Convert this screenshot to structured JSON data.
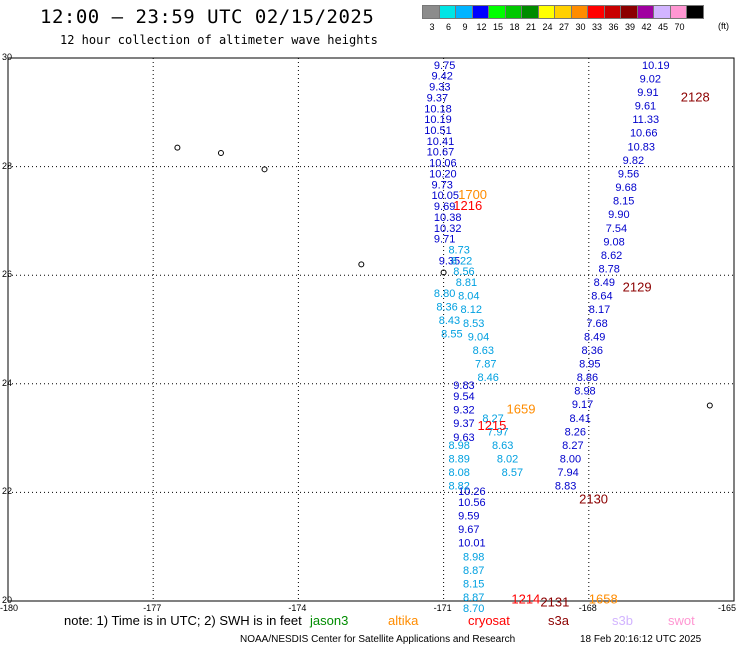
{
  "header": {
    "title": "12:00 – 23:59 UTC 02/15/2025",
    "subtitle": "12 hour collection of altimeter wave heights"
  },
  "colorbar": {
    "unit": "(ft)",
    "cells": [
      {
        "label": "3",
        "color": "#8c8c8c"
      },
      {
        "label": "6",
        "color": "#00e5e5"
      },
      {
        "label": "9",
        "color": "#00b4ff"
      },
      {
        "label": "12",
        "color": "#0000ff"
      },
      {
        "label": "15",
        "color": "#00ff00"
      },
      {
        "label": "18",
        "color": "#00c800"
      },
      {
        "label": "21",
        "color": "#008c00"
      },
      {
        "label": "24",
        "color": "#ffff00"
      },
      {
        "label": "27",
        "color": "#ffd000"
      },
      {
        "label": "30",
        "color": "#ff8c00"
      },
      {
        "label": "33",
        "color": "#ff0000"
      },
      {
        "label": "36",
        "color": "#c80000"
      },
      {
        "label": "39",
        "color": "#8c0000"
      },
      {
        "label": "42",
        "color": "#a000a0"
      },
      {
        "label": "45",
        "color": "#d2b4ff"
      },
      {
        "label": "70",
        "color": "#ff96d2"
      },
      {
        "label": "",
        "color": "#000000"
      }
    ]
  },
  "axes": {
    "lon_labels": [
      "-180",
      "-177",
      "-174",
      "-171",
      "-168",
      "-165"
    ],
    "lat_labels": [
      "30",
      "28",
      "26",
      "24",
      "22",
      "20"
    ]
  },
  "chart_data": {
    "type": "scatter",
    "title": "12:00 – 23:59 UTC 02/15/2025",
    "subtitle": "12 hour collection of altimeter wave heights",
    "xlim": [
      -180,
      -165
    ],
    "ylim": [
      20,
      30
    ],
    "grid": true,
    "units": "ft",
    "tracks": [
      {
        "pass": "left track",
        "color": "#0000cc",
        "points": [
          {
            "lon": -171.2,
            "lat": 29.8,
            "v": "9.75"
          },
          {
            "lon": -171.25,
            "lat": 29.6,
            "v": "9.42"
          },
          {
            "lon": -171.3,
            "lat": 29.4,
            "v": "9.33"
          },
          {
            "lon": -171.35,
            "lat": 29.2,
            "v": "9.37"
          },
          {
            "lon": -171.4,
            "lat": 29.0,
            "v": "10.18"
          },
          {
            "lon": -171.4,
            "lat": 28.8,
            "v": "10.19"
          },
          {
            "lon": -171.4,
            "lat": 28.6,
            "v": "10.51"
          },
          {
            "lon": -171.35,
            "lat": 28.4,
            "v": "10.41"
          },
          {
            "lon": -171.35,
            "lat": 28.2,
            "v": "10.67"
          },
          {
            "lon": -171.3,
            "lat": 28.0,
            "v": "10.06"
          },
          {
            "lon": -171.3,
            "lat": 27.8,
            "v": "10.20"
          },
          {
            "lon": -171.25,
            "lat": 27.6,
            "v": "9.73"
          },
          {
            "lon": -171.25,
            "lat": 27.4,
            "v": "10.05"
          },
          {
            "lon": -171.2,
            "lat": 27.2,
            "v": "9.69"
          },
          {
            "lon": -171.2,
            "lat": 27.0,
            "v": "10.38"
          },
          {
            "lon": -171.2,
            "lat": 26.8,
            "v": "10.32"
          },
          {
            "lon": -171.2,
            "lat": 26.6,
            "v": "9.71"
          },
          {
            "lon": -171.1,
            "lat": 26.2,
            "v": "9.35"
          },
          {
            "lon": -170.8,
            "lat": 23.9,
            "v": "9.83"
          },
          {
            "lon": -170.8,
            "lat": 23.7,
            "v": "9.54"
          },
          {
            "lon": -170.8,
            "lat": 23.45,
            "v": "9.32"
          },
          {
            "lon": -170.8,
            "lat": 23.2,
            "v": "9.37"
          },
          {
            "lon": -170.8,
            "lat": 22.95,
            "v": "9.63"
          },
          {
            "lon": -170.7,
            "lat": 21.95,
            "v": "10.26"
          },
          {
            "lon": -170.7,
            "lat": 21.75,
            "v": "10.56"
          },
          {
            "lon": -170.7,
            "lat": 21.5,
            "v": "9.59"
          },
          {
            "lon": -170.7,
            "lat": 21.25,
            "v": "9.67"
          },
          {
            "lon": -170.7,
            "lat": 21.0,
            "v": "10.01"
          }
        ]
      },
      {
        "pass": "right track",
        "color": "#0000cc",
        "points": [
          {
            "lon": -166.9,
            "lat": 29.8,
            "v": "10.19"
          },
          {
            "lon": -166.95,
            "lat": 29.55,
            "v": "9.02"
          },
          {
            "lon": -167.0,
            "lat": 29.3,
            "v": "9.91"
          },
          {
            "lon": -167.05,
            "lat": 29.05,
            "v": "9.61"
          },
          {
            "lon": -167.1,
            "lat": 28.8,
            "v": "11.33"
          },
          {
            "lon": -167.15,
            "lat": 28.55,
            "v": "10.66"
          },
          {
            "lon": -167.2,
            "lat": 28.3,
            "v": "10.83"
          },
          {
            "lon": -167.3,
            "lat": 28.05,
            "v": "9.82"
          },
          {
            "lon": -167.4,
            "lat": 27.8,
            "v": "9.56"
          },
          {
            "lon": -167.45,
            "lat": 27.55,
            "v": "9.68"
          },
          {
            "lon": -167.5,
            "lat": 27.3,
            "v": "8.15"
          },
          {
            "lon": -167.6,
            "lat": 27.05,
            "v": "9.90"
          },
          {
            "lon": -167.65,
            "lat": 26.8,
            "v": "7.54"
          },
          {
            "lon": -167.7,
            "lat": 26.55,
            "v": "9.08"
          },
          {
            "lon": -167.75,
            "lat": 26.3,
            "v": "8.62"
          },
          {
            "lon": -167.8,
            "lat": 26.05,
            "v": "8.78"
          },
          {
            "lon": -167.9,
            "lat": 25.8,
            "v": "8.49"
          },
          {
            "lon": -167.95,
            "lat": 25.55,
            "v": "8.64"
          },
          {
            "lon": -168.0,
            "lat": 25.3,
            "v": "8.17"
          },
          {
            "lon": -168.05,
            "lat": 25.05,
            "v": "7.68"
          },
          {
            "lon": -168.1,
            "lat": 24.8,
            "v": "8.49"
          },
          {
            "lon": -168.15,
            "lat": 24.55,
            "v": "8.36"
          },
          {
            "lon": -168.2,
            "lat": 24.3,
            "v": "8.95"
          },
          {
            "lon": -168.25,
            "lat": 24.05,
            "v": "8.86"
          },
          {
            "lon": -168.3,
            "lat": 23.8,
            "v": "8.98"
          },
          {
            "lon": -168.35,
            "lat": 23.55,
            "v": "9.17"
          },
          {
            "lon": -168.4,
            "lat": 23.3,
            "v": "8.41"
          },
          {
            "lon": -168.5,
            "lat": 23.05,
            "v": "8.26"
          },
          {
            "lon": -168.55,
            "lat": 22.8,
            "v": "8.27"
          },
          {
            "lon": -168.6,
            "lat": 22.55,
            "v": "8.00"
          },
          {
            "lon": -168.65,
            "lat": 22.3,
            "v": "7.94"
          },
          {
            "lon": -168.7,
            "lat": 22.05,
            "v": "8.83"
          }
        ]
      },
      {
        "pass": "middle track",
        "color": "#00a0e0",
        "points": [
          {
            "lon": -170.9,
            "lat": 26.4,
            "v": "8.73"
          },
          {
            "lon": -170.85,
            "lat": 26.2,
            "v": "8.22"
          },
          {
            "lon": -170.8,
            "lat": 26.0,
            "v": "8.56"
          },
          {
            "lon": -170.75,
            "lat": 25.8,
            "v": "8.81"
          },
          {
            "lon": -170.7,
            "lat": 25.55,
            "v": "8.04"
          },
          {
            "lon": -170.65,
            "lat": 25.3,
            "v": "8.12"
          },
          {
            "lon": -170.6,
            "lat": 25.05,
            "v": "8.53"
          },
          {
            "lon": -170.5,
            "lat": 24.8,
            "v": "9.04"
          },
          {
            "lon": -170.4,
            "lat": 24.55,
            "v": "8.63"
          },
          {
            "lon": -170.35,
            "lat": 24.3,
            "v": "7.87"
          },
          {
            "lon": -170.3,
            "lat": 24.05,
            "v": "8.46"
          },
          {
            "lon": -170.2,
            "lat": 23.3,
            "v": "8.27"
          },
          {
            "lon": -170.1,
            "lat": 23.05,
            "v": "7.97"
          },
          {
            "lon": -170.0,
            "lat": 22.8,
            "v": "8.63"
          },
          {
            "lon": -169.9,
            "lat": 22.55,
            "v": "8.02"
          },
          {
            "lon": -169.8,
            "lat": 22.3,
            "v": "8.57"
          }
        ]
      },
      {
        "pass": "left lower track",
        "color": "#00a0e0",
        "points": [
          {
            "lon": -171.2,
            "lat": 25.6,
            "v": "8.80"
          },
          {
            "lon": -171.15,
            "lat": 25.35,
            "v": "8.36"
          },
          {
            "lon": -171.1,
            "lat": 25.1,
            "v": "8.43"
          },
          {
            "lon": -171.05,
            "lat": 24.85,
            "v": "8.55"
          },
          {
            "lon": -170.9,
            "lat": 22.8,
            "v": "8.98"
          },
          {
            "lon": -170.9,
            "lat": 22.55,
            "v": "8.89"
          },
          {
            "lon": -170.9,
            "lat": 22.3,
            "v": "8.08"
          },
          {
            "lon": -170.9,
            "lat": 22.05,
            "v": "8.82"
          },
          {
            "lon": -170.6,
            "lat": 20.75,
            "v": "8.98"
          },
          {
            "lon": -170.6,
            "lat": 20.5,
            "v": "8.87"
          },
          {
            "lon": -170.6,
            "lat": 20.25,
            "v": "8.15"
          },
          {
            "lon": -170.6,
            "lat": 20.0,
            "v": "8.87"
          },
          {
            "lon": -170.6,
            "lat": 19.8,
            "v": "8.70"
          }
        ]
      }
    ],
    "time_labels": [
      {
        "text": "2128",
        "color": "#8c0000",
        "lon": -166.1,
        "lat": 29.2
      },
      {
        "text": "1700",
        "color": "#ff8c00",
        "lon": -170.7,
        "lat": 27.4
      },
      {
        "text": "1216",
        "color": "#ff0000",
        "lon": -170.8,
        "lat": 27.2
      },
      {
        "text": "2129",
        "color": "#8c0000",
        "lon": -167.3,
        "lat": 25.7
      },
      {
        "text": "1659",
        "color": "#ff8c00",
        "lon": -169.7,
        "lat": 23.45
      },
      {
        "text": "1215",
        "color": "#ff0000",
        "lon": -170.3,
        "lat": 23.15
      },
      {
        "text": "2130",
        "color": "#8c0000",
        "lon": -168.2,
        "lat": 21.8
      },
      {
        "text": "1214",
        "color": "#ff0000",
        "lon": -169.6,
        "lat": 19.95
      },
      {
        "text": "2131",
        "color": "#8c0000",
        "lon": -169.0,
        "lat": 19.9
      },
      {
        "text": "1658",
        "color": "#ff8c00",
        "lon": -168.0,
        "lat": 19.95
      }
    ]
  },
  "footer": {
    "note": "note:  1) Time is in UTC;  2) SWH is in feet",
    "satellites": [
      {
        "name": "jason3",
        "color": "#008c00"
      },
      {
        "name": "altika",
        "color": "#ff8c00"
      },
      {
        "name": "cryosat",
        "color": "#ff0000"
      },
      {
        "name": "s3a",
        "color": "#8c0000"
      },
      {
        "name": "s3b",
        "color": "#d2b4ff"
      },
      {
        "name": "swot",
        "color": "#ff96d2"
      }
    ],
    "credit": "NOAA/NESDIS Center for Satellite Applications and Research",
    "timestamp": "18 Feb 20:16:12 UTC 2025"
  }
}
